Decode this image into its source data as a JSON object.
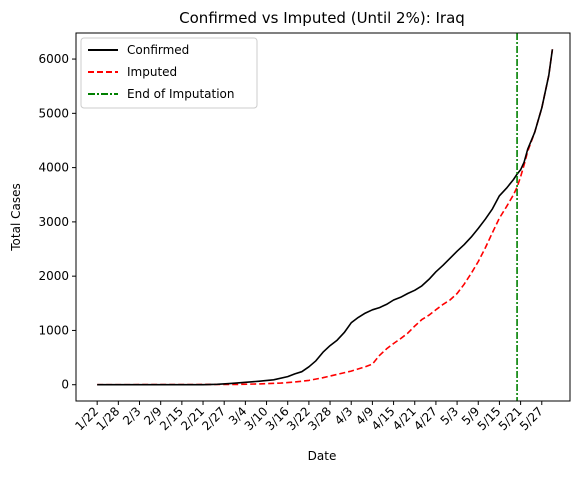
{
  "chart_data": {
    "type": "line",
    "title": "Confirmed vs Imputed (Until 2%): Iraq",
    "xlabel": "Date",
    "ylabel": "Total Cases",
    "x_unit": "days since 1/22 (2020)",
    "xlim": [
      -6,
      134
    ],
    "ylim": [
      -300,
      6480
    ],
    "yticks": [
      0,
      1000,
      2000,
      3000,
      4000,
      5000,
      6000
    ],
    "xticks": [
      {
        "x": 0,
        "label": "1/22"
      },
      {
        "x": 6,
        "label": "1/28"
      },
      {
        "x": 12,
        "label": "2/3"
      },
      {
        "x": 18,
        "label": "2/9"
      },
      {
        "x": 24,
        "label": "2/15"
      },
      {
        "x": 30,
        "label": "2/21"
      },
      {
        "x": 36,
        "label": "2/27"
      },
      {
        "x": 42,
        "label": "3/4"
      },
      {
        "x": 48,
        "label": "3/10"
      },
      {
        "x": 54,
        "label": "3/16"
      },
      {
        "x": 60,
        "label": "3/22"
      },
      {
        "x": 66,
        "label": "3/28"
      },
      {
        "x": 72,
        "label": "4/3"
      },
      {
        "x": 78,
        "label": "4/9"
      },
      {
        "x": 84,
        "label": "4/15"
      },
      {
        "x": 90,
        "label": "4/21"
      },
      {
        "x": 96,
        "label": "4/27"
      },
      {
        "x": 102,
        "label": "5/3"
      },
      {
        "x": 108,
        "label": "5/9"
      },
      {
        "x": 114,
        "label": "5/15"
      },
      {
        "x": 120,
        "label": "5/21"
      },
      {
        "x": 126,
        "label": "5/27"
      }
    ],
    "grid": false,
    "legend_position": "top-left",
    "series": [
      {
        "name": "Confirmed",
        "color": "#000000",
        "style": "solid",
        "x": [
          0,
          30,
          34,
          38,
          42,
          46,
          50,
          54,
          56,
          58,
          60,
          62,
          64,
          66,
          68,
          70,
          72,
          74,
          76,
          78,
          80,
          82,
          84,
          86,
          88,
          90,
          92,
          94,
          96,
          98,
          100,
          102,
          104,
          106,
          108,
          110,
          112,
          114,
          116,
          118,
          119,
          120,
          121,
          122,
          124,
          126,
          128,
          129
        ],
        "y": [
          0,
          0,
          8,
          25,
          45,
          65,
          90,
          150,
          200,
          240,
          330,
          440,
          600,
          720,
          820,
          960,
          1140,
          1240,
          1320,
          1380,
          1420,
          1480,
          1560,
          1610,
          1680,
          1740,
          1820,
          1940,
          2080,
          2200,
          2330,
          2460,
          2580,
          2720,
          2880,
          3050,
          3240,
          3480,
          3620,
          3780,
          3880,
          3960,
          4100,
          4340,
          4650,
          5100,
          5700,
          6180
        ]
      },
      {
        "name": "Imputed",
        "color": "#ff0000",
        "style": "dashed",
        "x": [
          0,
          40,
          46,
          52,
          56,
          60,
          64,
          68,
          72,
          76,
          78,
          80,
          82,
          84,
          86,
          88,
          90,
          92,
          94,
          96,
          98,
          100,
          102,
          104,
          106,
          108,
          110,
          112,
          114,
          116,
          118,
          119,
          120,
          121,
          122,
          124,
          126,
          128,
          129
        ],
        "y": [
          0,
          5,
          15,
          30,
          50,
          80,
          130,
          190,
          250,
          330,
          380,
          540,
          660,
          760,
          850,
          950,
          1080,
          1200,
          1280,
          1380,
          1480,
          1560,
          1680,
          1850,
          2050,
          2270,
          2520,
          2800,
          3070,
          3280,
          3500,
          3640,
          3830,
          4050,
          4300,
          4650,
          5100,
          5700,
          6180
        ]
      }
    ],
    "vlines": [
      {
        "name": "End of Imputation",
        "x": 119,
        "color": "#008000",
        "style": "dashdot"
      }
    ]
  }
}
